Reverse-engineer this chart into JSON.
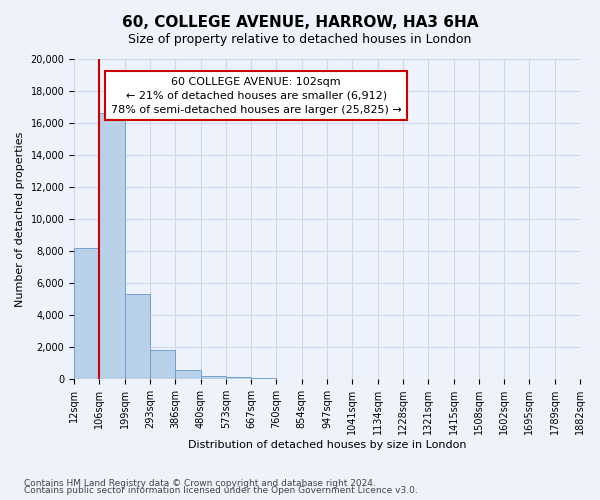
{
  "title": "60, COLLEGE AVENUE, HARROW, HA3 6HA",
  "subtitle": "Size of property relative to detached houses in London",
  "xlabel": "Distribution of detached houses by size in London",
  "ylabel": "Number of detached properties",
  "bar_values": [
    8200,
    16600,
    5300,
    1800,
    600,
    200,
    130,
    90,
    0,
    0,
    0,
    0,
    0,
    0,
    0,
    0,
    0,
    0,
    0,
    0
  ],
  "bar_labels": [
    "12sqm",
    "106sqm",
    "199sqm",
    "293sqm",
    "386sqm",
    "480sqm",
    "573sqm",
    "667sqm",
    "760sqm",
    "854sqm",
    "947sqm",
    "1041sqm",
    "1134sqm",
    "1228sqm",
    "1321sqm",
    "1415sqm",
    "1508sqm",
    "1602sqm",
    "1695sqm",
    "1789sqm",
    "1882sqm"
  ],
  "bar_color": "#b8d0e8",
  "bar_edge_color": "#6699cc",
  "ylim": [
    0,
    20000
  ],
  "yticks": [
    0,
    2000,
    4000,
    6000,
    8000,
    10000,
    12000,
    14000,
    16000,
    18000,
    20000
  ],
  "pct_smaller": "21%",
  "num_smaller": "6,912",
  "pct_larger": "78%",
  "num_larger": "25,825",
  "vline_color": "#cc0000",
  "annotation_box_facecolor": "#ffffff",
  "annotation_box_edgecolor": "#cc0000",
  "background_color": "#eef2fb",
  "grid_color": "#d0d8f0",
  "title_fontsize": 11,
  "subtitle_fontsize": 9,
  "axis_label_fontsize": 8,
  "tick_fontsize": 7,
  "annotation_fontsize": 8,
  "footer_fontsize": 6.5,
  "footer_text1": "Contains HM Land Registry data © Crown copyright and database right 2024.",
  "footer_text2": "Contains public sector information licensed under the Open Government Licence v3.0."
}
